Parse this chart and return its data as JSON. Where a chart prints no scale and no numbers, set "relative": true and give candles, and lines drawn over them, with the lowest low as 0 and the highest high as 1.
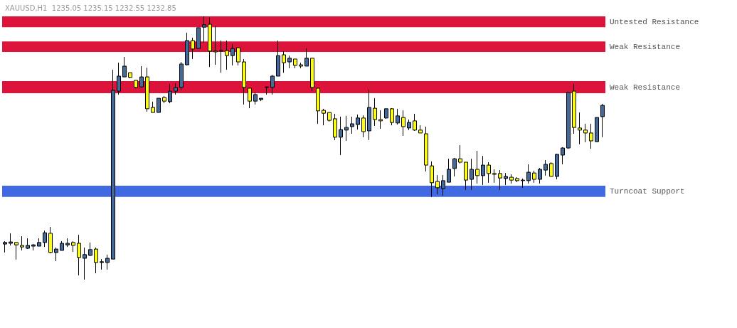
{
  "chart_data": {
    "type": "candlestick",
    "title": "XAUUSD,H1  1235.05 1235.15 1232.55 1232.85",
    "relative": true,
    "categories": [
      null,
      null,
      null,
      null,
      null,
      null,
      null,
      null,
      null,
      null,
      null,
      null,
      null,
      null,
      null,
      null,
      null,
      null,
      null,
      null,
      null,
      null,
      null,
      null,
      null,
      null,
      null,
      null,
      null,
      null,
      null,
      null,
      null,
      null,
      null,
      null,
      null,
      null,
      null,
      null,
      null,
      null,
      null,
      null,
      null,
      null,
      null,
      null,
      null,
      null,
      null,
      null,
      null,
      null,
      null,
      null,
      null,
      null,
      null,
      null,
      null,
      null,
      null,
      null,
      null,
      null,
      null,
      null,
      null,
      null,
      null,
      null,
      null,
      null,
      null,
      null,
      null,
      null,
      null,
      null,
      null,
      null,
      null,
      null,
      null,
      null,
      null,
      null,
      null,
      null,
      null,
      null,
      null,
      null,
      null,
      null,
      null,
      null,
      null,
      null,
      null,
      null,
      null,
      null,
      null,
      null
    ],
    "ohlc": [
      [
        0.135,
        0.146,
        0.103,
        0.141
      ],
      [
        0.138,
        0.176,
        0.13,
        0.143
      ],
      [
        0.141,
        0.141,
        0.076,
        0.132
      ],
      [
        0.13,
        0.165,
        0.111,
        0.124
      ],
      [
        0.119,
        0.157,
        0.116,
        0.13
      ],
      [
        0.127,
        0.135,
        0.111,
        0.132
      ],
      [
        0.127,
        0.157,
        0.127,
        0.141
      ],
      [
        0.141,
        0.186,
        0.124,
        0.178
      ],
      [
        0.176,
        0.2,
        0.1,
        0.103
      ],
      [
        0.103,
        0.122,
        0.07,
        0.116
      ],
      [
        0.111,
        0.146,
        0.111,
        0.138
      ],
      [
        0.132,
        0.157,
        0.124,
        0.138
      ],
      [
        0.141,
        0.146,
        0.105,
        0.13
      ],
      [
        0.138,
        0.17,
        0.016,
        0.084
      ],
      [
        0.081,
        0.122,
        0,
        0.095
      ],
      [
        0.092,
        0.141,
        0.089,
        0.114
      ],
      [
        0.116,
        0.122,
        0.024,
        0.065
      ],
      [
        0.065,
        0.078,
        0.038,
        0.068
      ],
      [
        0.065,
        0.095,
        0.038,
        0.081
      ],
      [
        0.078,
        0.797,
        0.078,
        0.719
      ],
      [
        0.716,
        0.824,
        0.703,
        0.773
      ],
      [
        0.77,
        0.846,
        0.77,
        0.811
      ],
      [
        0.786,
        0.786,
        0.765,
        0.768
      ],
      [
        0.757,
        0.757,
        0.727,
        0.73
      ],
      [
        0.732,
        0.811,
        0.73,
        0.77
      ],
      [
        0.77,
        0.805,
        0.638,
        0.649
      ],
      [
        0.654,
        0.676,
        0.635,
        0.635
      ],
      [
        0.635,
        0.689,
        0.635,
        0.689
      ],
      [
        0.692,
        0.697,
        0.67,
        0.678
      ],
      [
        0.676,
        0.743,
        0.67,
        0.716
      ],
      [
        0.716,
        0.746,
        0.703,
        0.73
      ],
      [
        0.73,
        0.827,
        0.719,
        0.819
      ],
      [
        0.816,
        0.938,
        0.814,
        0.908
      ],
      [
        0.908,
        0.919,
        0.838,
        0.876
      ],
      [
        0.878,
        0.957,
        0.878,
        0.957
      ],
      [
        0.959,
        1,
        0.9,
        0.968
      ],
      [
        0.97,
        0.995,
        0.808,
        0.868
      ],
      [
        0.868,
        0.962,
        0.816,
        0.865
      ],
      [
        0.87,
        0.908,
        0.786,
        0.868
      ],
      [
        0.87,
        0.908,
        0.797,
        0.851
      ],
      [
        0.851,
        0.895,
        0.814,
        0.878
      ],
      [
        0.881,
        0.881,
        0.814,
        0.827
      ],
      [
        0.827,
        0.838,
        0.665,
        0.73
      ],
      [
        0.727,
        0.727,
        0.651,
        0.678
      ],
      [
        0.678,
        0.711,
        0.665,
        0.703
      ],
      [
        0.684,
        0.689,
        0.678,
        0.689
      ],
      [
        0.73,
        0.732,
        0.703,
        0.732
      ],
      [
        0.73,
        0.778,
        0.703,
        0.773
      ],
      [
        0.773,
        0.908,
        0.773,
        0.851
      ],
      [
        0.854,
        0.868,
        0.786,
        0.824
      ],
      [
        0.827,
        0.851,
        0.803,
        0.841
      ],
      [
        0.838,
        0.838,
        0.803,
        0.814
      ],
      [
        0.816,
        0.824,
        0.803,
        0.811
      ],
      [
        0.811,
        0.878,
        0.811,
        0.841
      ],
      [
        0.841,
        0.841,
        0.716,
        0.73
      ],
      [
        0.727,
        0.727,
        0.592,
        0.641
      ],
      [
        0.643,
        0.649,
        0.586,
        0.632
      ],
      [
        0.635,
        0.635,
        0.6,
        0.605
      ],
      [
        0.611,
        0.63,
        0.53,
        0.541
      ],
      [
        0.541,
        0.619,
        0.473,
        0.57
      ],
      [
        0.568,
        0.622,
        0.527,
        0.578
      ],
      [
        0.581,
        0.619,
        0.554,
        0.592
      ],
      [
        0.589,
        0.627,
        0.57,
        0.614
      ],
      [
        0.614,
        0.624,
        0.541,
        0.562
      ],
      [
        0.565,
        0.722,
        0.53,
        0.654
      ],
      [
        0.651,
        0.689,
        0.584,
        0.608
      ],
      [
        0.608,
        0.643,
        0.573,
        0.603
      ],
      [
        0.614,
        0.649,
        0.611,
        0.649
      ],
      [
        0.649,
        0.651,
        0.586,
        0.597
      ],
      [
        0.595,
        0.649,
        0.589,
        0.622
      ],
      [
        0.616,
        0.643,
        0.546,
        0.581
      ],
      [
        0.576,
        0.608,
        0.568,
        0.597
      ],
      [
        0.603,
        0.63,
        0.565,
        0.568
      ],
      [
        0.568,
        0.586,
        0.557,
        0.557
      ],
      [
        0.554,
        0.581,
        0.411,
        0.435
      ],
      [
        0.432,
        0.449,
        0.314,
        0.368
      ],
      [
        0.373,
        0.397,
        0.324,
        0.349
      ],
      [
        0.346,
        0.397,
        0.319,
        0.376
      ],
      [
        0.37,
        0.459,
        0.37,
        0.419
      ],
      [
        0.422,
        0.462,
        0.392,
        0.459
      ],
      [
        0.459,
        0.511,
        0.441,
        0.446
      ],
      [
        0.446,
        0.446,
        0.341,
        0.378
      ],
      [
        0.381,
        0.459,
        0.341,
        0.419
      ],
      [
        0.419,
        0.489,
        0.365,
        0.395
      ],
      [
        0.395,
        0.47,
        0.359,
        0.435
      ],
      [
        0.435,
        0.446,
        0.368,
        0.403
      ],
      [
        0.403,
        0.419,
        0.368,
        0.4
      ],
      [
        0.403,
        0.416,
        0.341,
        0.386
      ],
      [
        0.384,
        0.405,
        0.359,
        0.392
      ],
      [
        0.389,
        0.4,
        0.365,
        0.378
      ],
      [
        0.384,
        0.389,
        0.37,
        0.376
      ],
      [
        0.376,
        0.384,
        0.349,
        0.378
      ],
      [
        0.376,
        0.438,
        0.365,
        0.408
      ],
      [
        0.405,
        0.414,
        0.368,
        0.381
      ],
      [
        0.381,
        0.424,
        0.365,
        0.419
      ],
      [
        0.416,
        0.454,
        0.395,
        0.438
      ],
      [
        0.441,
        0.446,
        0.392,
        0.392
      ],
      [
        0.392,
        0.478,
        0.381,
        0.476
      ],
      [
        0.473,
        0.503,
        0.438,
        0.5
      ],
      [
        0.5,
        0.711,
        0.497,
        0.711
      ],
      [
        0.716,
        0.743,
        0.554,
        0.578
      ],
      [
        0.576,
        0.635,
        0.514,
        0.568
      ],
      [
        0.568,
        0.592,
        0.522,
        0.557
      ],
      [
        0.557,
        0.592,
        0.497,
        0.527
      ],
      [
        0.524,
        0.616,
        0.524,
        0.616
      ],
      [
        0.619,
        0.668,
        0.541,
        0.662
      ]
    ],
    "colors": [
      "#41699b",
      "#41699b",
      "#ffff00",
      "#ffff00",
      "#41699b",
      "#41699b",
      "#41699b",
      "#41699b",
      "#ffff00",
      "#41699b",
      "#41699b",
      "#41699b",
      "#ffff00",
      "#ffff00",
      "#41699b",
      "#41699b",
      "#ffff00",
      "#41699b",
      "#41699b",
      "#41699b",
      "#41699b",
      "#41699b",
      "#ffff00",
      "#ffff00",
      "#41699b",
      "#ffff00",
      "#ffff00",
      "#41699b",
      "#ffff00",
      "#41699b",
      "#41699b",
      "#41699b",
      "#41699b",
      "#ffff00",
      "#41699b",
      "#41699b",
      "#ffff00",
      "#ffff00",
      "#ffff00",
      "#ffff00",
      "#41699b",
      "#ffff00",
      "#ffff00",
      "#ffff00",
      "#41699b",
      "#41699b",
      "#41699b",
      "#41699b",
      "#41699b",
      "#ffff00",
      "#41699b",
      "#ffff00",
      "#ffff00",
      "#41699b",
      "#ffff00",
      "#ffff00",
      "#ffff00",
      "#ffff00",
      "#ffff00",
      "#41699b",
      "#41699b",
      "#41699b",
      "#41699b",
      "#ffff00",
      "#41699b",
      "#ffff00",
      "#ffff00",
      "#41699b",
      "#ffff00",
      "#41699b",
      "#ffff00",
      "#41699b",
      "#ffff00",
      "#ffff00",
      "#ffff00",
      "#ffff00",
      "#ffff00",
      "#41699b",
      "#41699b",
      "#41699b",
      "#ffff00",
      "#ffff00",
      "#41699b",
      "#ffff00",
      "#41699b",
      "#ffff00",
      "#ffff00",
      "#ffff00",
      "#41699b",
      "#ffff00",
      "#ffff00",
      "#41699b",
      "#41699b",
      "#ffff00",
      "#41699b",
      "#41699b",
      "#ffff00",
      "#41699b",
      "#41699b",
      "#41699b",
      "#ffff00",
      "#ffff00",
      "#ffff00",
      "#ffff00",
      "#41699b",
      "#41699b"
    ],
    "bands": [
      {
        "axis": "y",
        "from": 0.959,
        "to": 1,
        "label": "Untested Resistance",
        "color": "#dc143c"
      },
      {
        "axis": "y",
        "from": 0.865,
        "to": 0.905,
        "label": "Weak Resistance",
        "color": "#dc143c"
      },
      {
        "axis": "y",
        "from": 0.708,
        "to": 0.754,
        "label": "Weak Resistance",
        "color": "#dc143c"
      },
      {
        "axis": "y",
        "from": 0.314,
        "to": 0.357,
        "label": "Turncoat Support",
        "color": "#4169e1"
      }
    ]
  }
}
